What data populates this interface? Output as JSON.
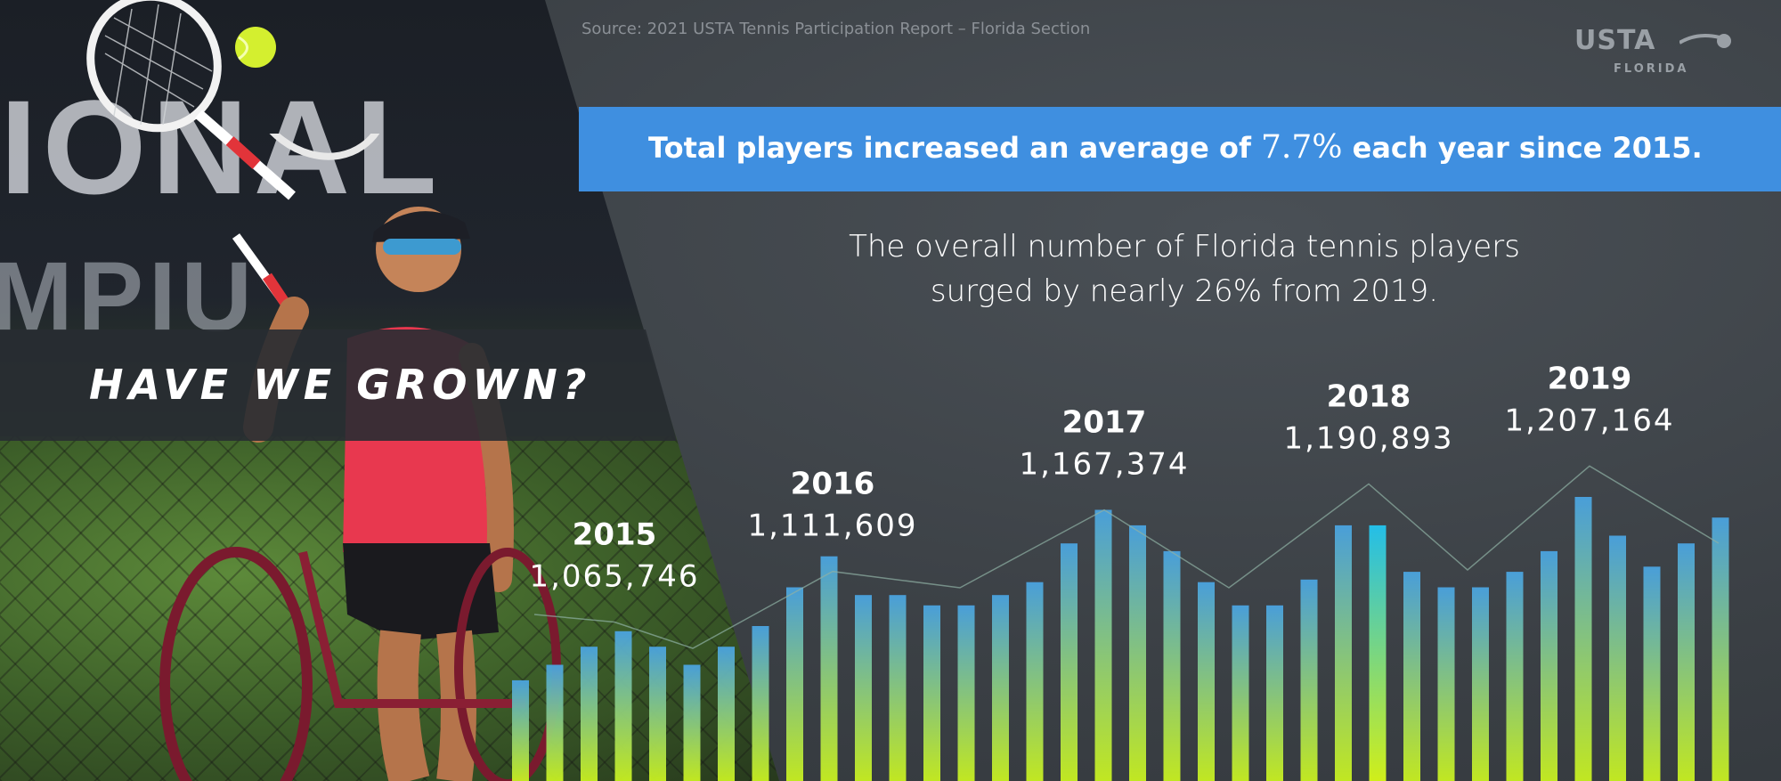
{
  "source": "Source: 2021 USTA Tennis Participation Report – Florida Section",
  "logo": {
    "name": "USTA",
    "region": "FLORIDA"
  },
  "highlight": {
    "pre": "Total players increased an average of ",
    "pct": "7.7%",
    "post": " each year since 2015."
  },
  "subtitle": {
    "line1": "The overall number of Florida tennis players",
    "line2": "surged by nearly 26% from 2019."
  },
  "headline": "HAVE WE GROWN?",
  "photo_text": {
    "banner": "IONAL",
    "banner2": "MPIU"
  },
  "colors": {
    "accent": "#3f8fe0",
    "bar_top": "#4aa3e0",
    "bar_bottom": "#c8f020",
    "highlight_bar": "#22c4f0"
  },
  "chart_data": {
    "type": "line",
    "title": "",
    "xlabel": "",
    "ylabel": "",
    "x": [
      "2015",
      "2016",
      "2017",
      "2018",
      "2019"
    ],
    "values": [
      1065746,
      1111609,
      1167374,
      1190893,
      1207164
    ],
    "value_labels": [
      "1,065,746",
      "1,111,609",
      "1,167,374",
      "1,190,893",
      "1,207,164"
    ],
    "decorative_bars": [
      0.39,
      0.45,
      0.52,
      0.58,
      0.52,
      0.45,
      0.52,
      0.6,
      0.75,
      0.87,
      0.72,
      0.72,
      0.68,
      0.68,
      0.72,
      0.77,
      0.92,
      1.05,
      0.99,
      0.89,
      0.77,
      0.68,
      0.68,
      0.78,
      0.99,
      0.99,
      0.81,
      0.75,
      0.75,
      0.81,
      0.89,
      1.1,
      0.95,
      0.83,
      0.92,
      1.02
    ],
    "highlight_bar_index": 25
  }
}
